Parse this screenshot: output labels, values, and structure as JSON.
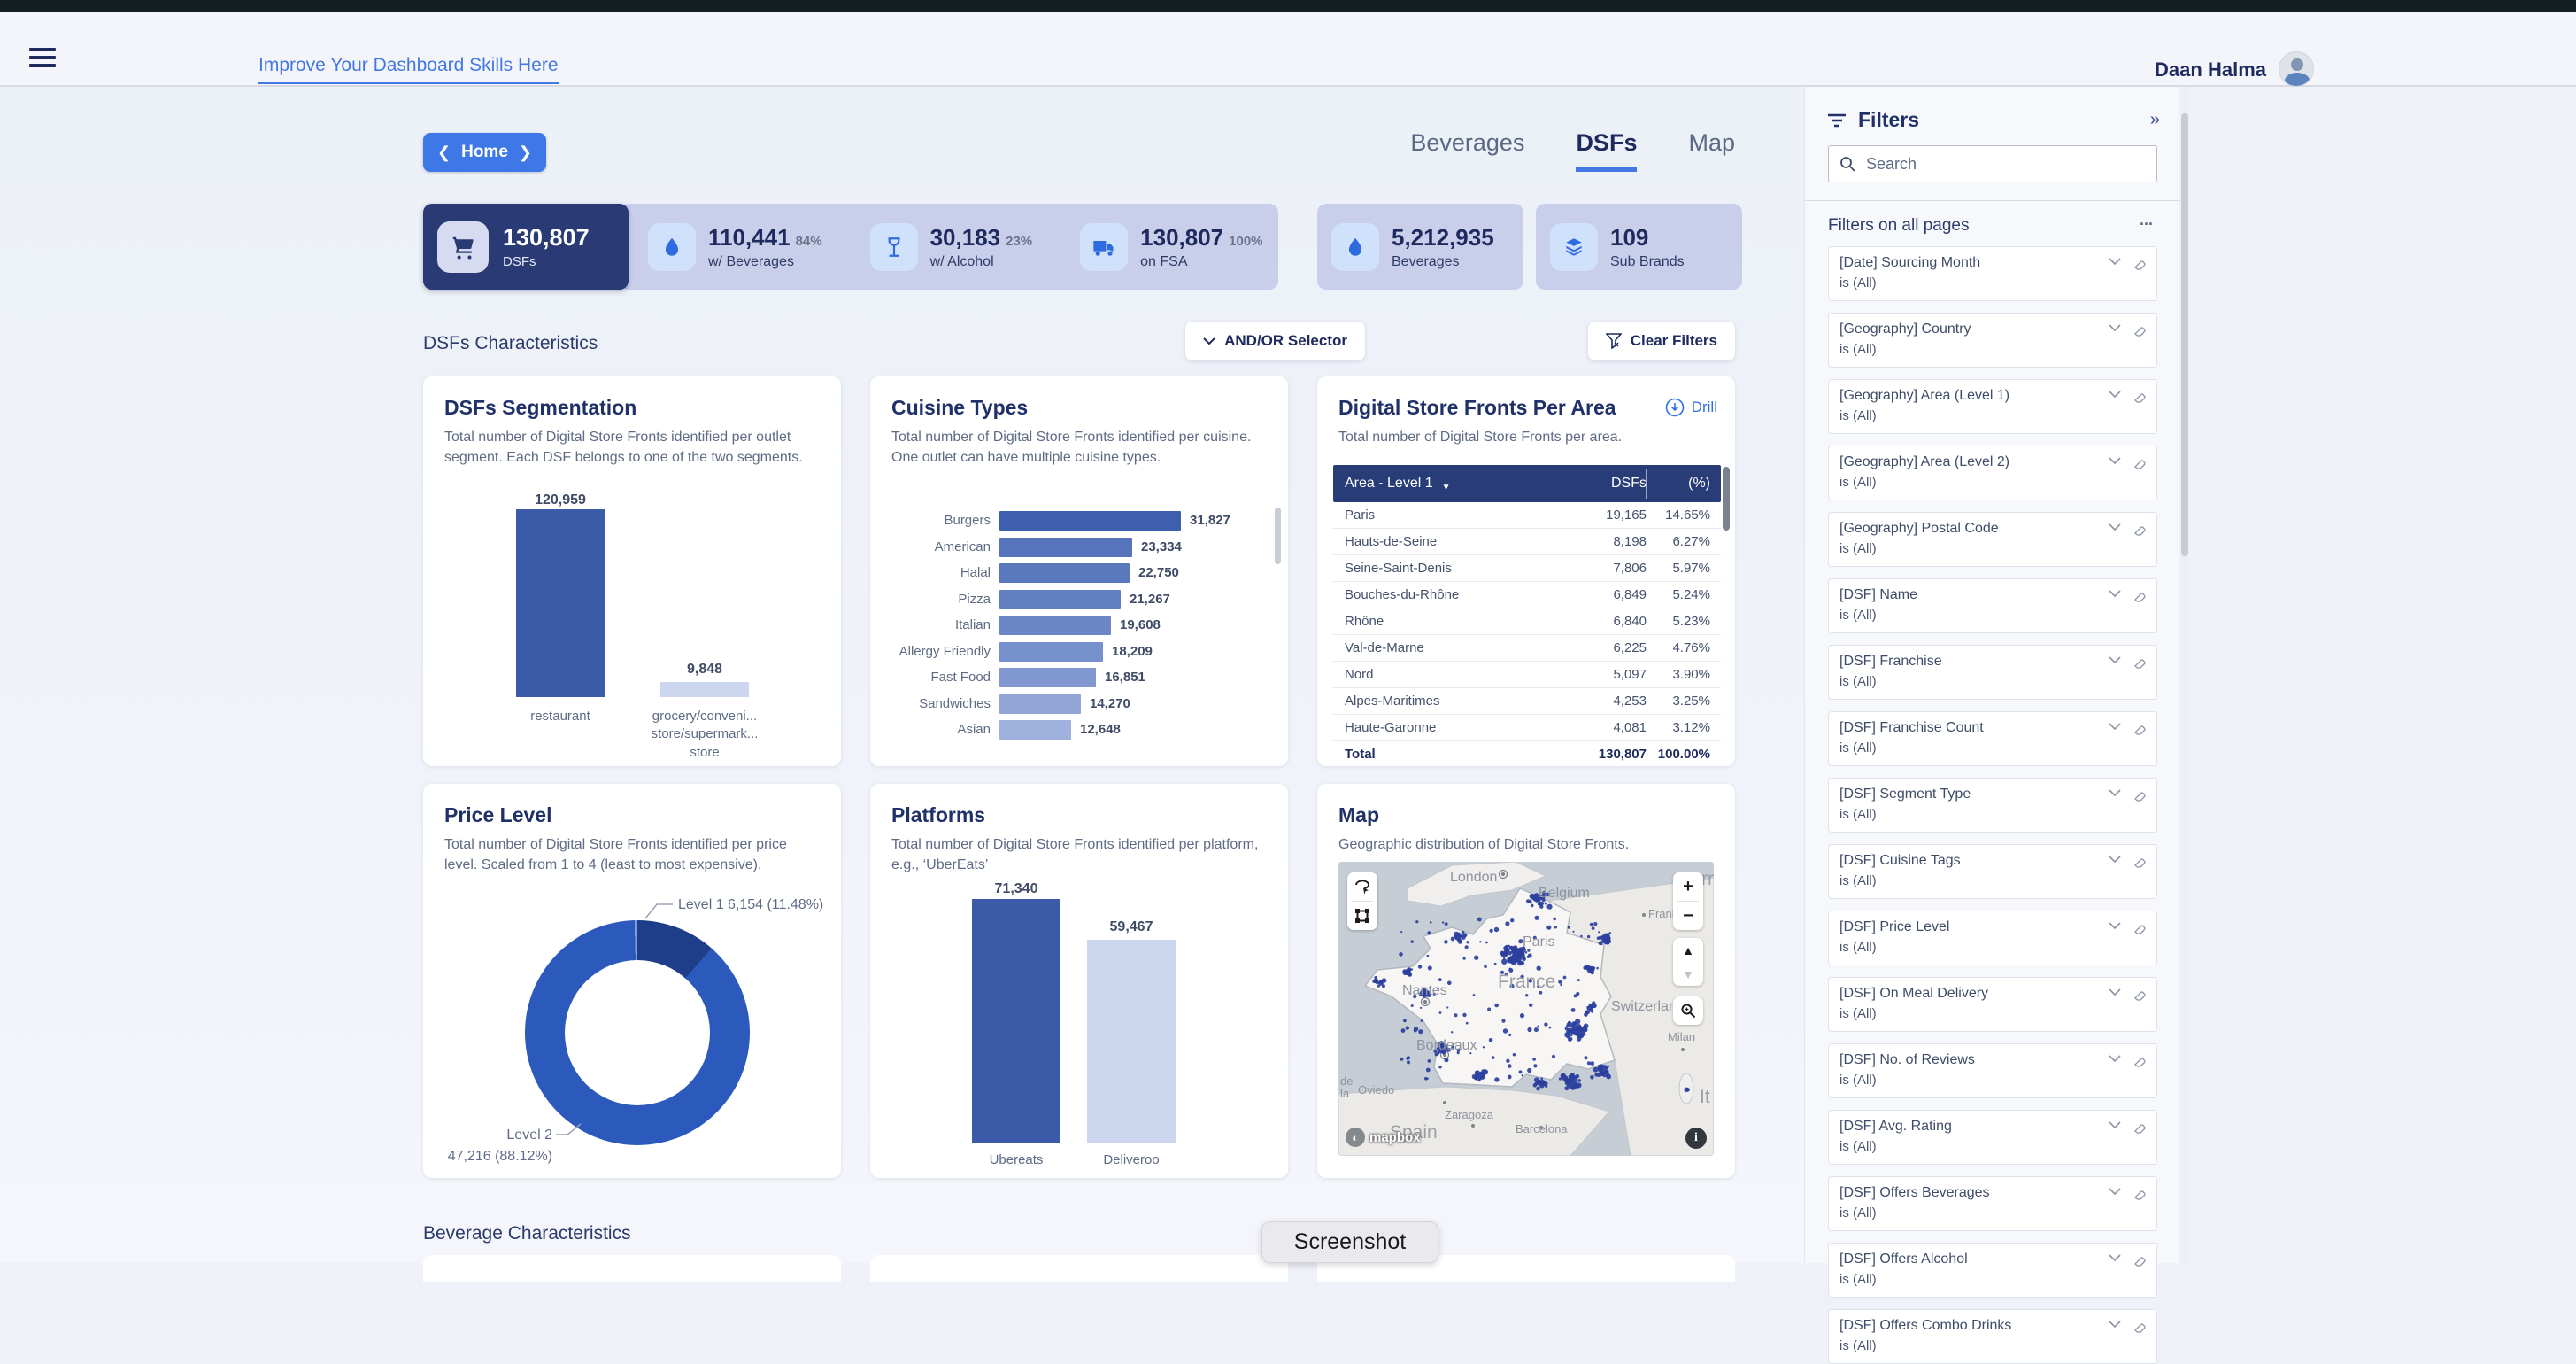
{
  "header": {
    "skills_link": "Improve Your Dashboard Skills Here",
    "user_name": "Daan Halma"
  },
  "nav": {
    "home_label": "Home",
    "tabs": [
      {
        "label": "Beverages",
        "active": false
      },
      {
        "label": "DSFs",
        "active": true
      },
      {
        "label": "Map",
        "active": false
      }
    ]
  },
  "kpis": {
    "dark": {
      "value": "130,807",
      "label": "DSFs",
      "icon": "cart-icon"
    },
    "group": [
      {
        "value": "110,441",
        "pct": "84%",
        "label": "w/ Beverages",
        "icon": "droplet-icon"
      },
      {
        "value": "30,183",
        "pct": "23%",
        "label": "w/ Alcohol",
        "icon": "wine-glass-icon"
      },
      {
        "value": "130,807",
        "pct": "100%",
        "label": "on FSA",
        "icon": "truck-icon"
      }
    ],
    "single": [
      {
        "value": "5,212,935",
        "label": "Beverages",
        "icon": "droplet-icon"
      },
      {
        "value": "109",
        "label": "Sub Brands",
        "icon": "layers-icon"
      }
    ]
  },
  "sections": {
    "dsf": "DSFs Characteristics",
    "beverage": "Beverage Characteristics"
  },
  "toolbar": {
    "andor_label": "AND/OR Selector",
    "clear_label": "Clear Filters"
  },
  "cards": {
    "segmentation": {
      "title": "DSFs Segmentation",
      "desc": "Total number of Digital Store Fronts identified per outlet segment. Each DSF belongs to one of the two segments."
    },
    "cuisine": {
      "title": "Cuisine Types",
      "desc": "Total number of Digital Store Fronts identified per cuisine. One outlet can have multiple cuisine types."
    },
    "area": {
      "title": "Digital Store Fronts Per Area",
      "desc": "Total number of Digital Store Fronts per area.",
      "drill_label": "Drill"
    },
    "price": {
      "title": "Price Level",
      "desc": "Total number of Digital Store Fronts identified per price level. Scaled from 1 to 4 (least to most expensive)."
    },
    "platforms": {
      "title": "Platforms",
      "desc": "Total number of Digital Store Fronts identified per platform, e.g., ‘UberEats’"
    },
    "map": {
      "title": "Map",
      "desc": "Geographic distribution of Digital Store Fronts.",
      "attribution": "mapbox",
      "labels": [
        {
          "text": "London"
        },
        {
          "text": "Belgium"
        },
        {
          "text": "Germ"
        },
        {
          "text": "Frank"
        },
        {
          "text": "Paris"
        },
        {
          "text": "France"
        },
        {
          "text": "Nantes"
        },
        {
          "text": "Switzerland"
        },
        {
          "text": "Milan"
        },
        {
          "text": "Bordeaux"
        },
        {
          "text": "Oviedo"
        },
        {
          "text": "Zaragoza"
        },
        {
          "text": "Spain"
        },
        {
          "text": "Barcelona"
        },
        {
          "text": "It"
        },
        {
          "text": "de"
        },
        {
          "text": "la"
        }
      ]
    }
  },
  "chart_data": [
    {
      "type": "bar",
      "title": "DSFs Segmentation",
      "categories": [
        "restaurant",
        "grocery/conveni... store/supermark... store"
      ],
      "category_lines": [
        [
          "restaurant"
        ],
        [
          "grocery/conveni...",
          "store/supermark...",
          "store"
        ]
      ],
      "values": [
        120959,
        9848
      ],
      "labels": [
        "120,959",
        "9,848"
      ],
      "colors": [
        "#3b5aa8",
        "#ccd6ee"
      ],
      "ylim": [
        0,
        130000
      ]
    },
    {
      "type": "bar",
      "orientation": "horizontal",
      "title": "Cuisine Types",
      "bars": [
        {
          "label": "Burgers",
          "value": 31827,
          "display": "31,827",
          "color": "#3d5fae"
        },
        {
          "label": "American",
          "value": 23334,
          "display": "23,334",
          "color": "#5674bb"
        },
        {
          "label": "Halal",
          "value": 22750,
          "display": "22,750",
          "color": "#5a78bd"
        },
        {
          "label": "Pizza",
          "value": 21267,
          "display": "21,267",
          "color": "#6280c2"
        },
        {
          "label": "Italian",
          "value": 19608,
          "display": "19,608",
          "color": "#6b87c6"
        },
        {
          "label": "Allergy Friendly",
          "value": 18209,
          "display": "18,209",
          "color": "#7690cb"
        },
        {
          "label": "Fast Food",
          "value": 16851,
          "display": "16,851",
          "color": "#8097cf"
        },
        {
          "label": "Sandwiches",
          "value": 14270,
          "display": "14,270",
          "color": "#91a5d6"
        },
        {
          "label": "Asian",
          "value": 12648,
          "display": "12,648",
          "color": "#9fb1dd"
        }
      ]
    },
    {
      "type": "table",
      "title": "Digital Store Fronts Per Area",
      "columns": [
        "Area - Level 1",
        "DSFs",
        "(%)"
      ],
      "rows": [
        [
          "Paris",
          "19,165",
          "14.65%"
        ],
        [
          "Hauts-de-Seine",
          "8,198",
          "6.27%"
        ],
        [
          "Seine-Saint-Denis",
          "7,806",
          "5.97%"
        ],
        [
          "Bouches-du-Rhône",
          "6,849",
          "5.24%"
        ],
        [
          "Rhône",
          "6,840",
          "5.23%"
        ],
        [
          "Val-de-Marne",
          "6,225",
          "4.76%"
        ],
        [
          "Nord",
          "5,097",
          "3.90%"
        ],
        [
          "Alpes-Maritimes",
          "4,253",
          "3.25%"
        ],
        [
          "Haute-Garonne",
          "4,081",
          "3.12%"
        ]
      ],
      "total": [
        "Total",
        "130,807",
        "100.00%"
      ]
    },
    {
      "type": "pie",
      "title": "Price Level",
      "slices": [
        {
          "label": "Level 1",
          "value": 6154,
          "pct": 11.48,
          "color": "#1e3e8a"
        },
        {
          "label": "Level 2",
          "value": 47216,
          "pct": 88.12,
          "color": "#2b5abc"
        },
        {
          "label": "",
          "value": null,
          "pct": 0.4,
          "color": "#7e9ee0"
        }
      ],
      "callouts": {
        "level1": "Level 1 6,154 (11.48%)",
        "level2_name": "Level 2",
        "level2_value": "47,216 (88.12%)"
      }
    },
    {
      "type": "bar",
      "title": "Platforms",
      "categories": [
        "Ubereats",
        "Deliveroo"
      ],
      "values": [
        71340,
        59467
      ],
      "labels": [
        "71,340",
        "59,467"
      ],
      "colors": [
        "#3b5aa8",
        "#ccd6ee"
      ]
    },
    {
      "type": "scatter-map",
      "title": "Map",
      "dot_color": "#2b3f9e",
      "clusters": [
        {
          "x": 200,
          "y": 105,
          "n": 80,
          "s": 17
        },
        {
          "x": 225,
          "y": 42,
          "n": 32,
          "s": 14
        },
        {
          "x": 300,
          "y": 88,
          "n": 22,
          "s": 10
        },
        {
          "x": 285,
          "y": 120,
          "n": 12,
          "s": 8
        },
        {
          "x": 268,
          "y": 190,
          "n": 48,
          "s": 14
        },
        {
          "x": 286,
          "y": 164,
          "n": 15,
          "s": 8
        },
        {
          "x": 262,
          "y": 248,
          "n": 30,
          "s": 12
        },
        {
          "x": 299,
          "y": 237,
          "n": 26,
          "s": 10
        },
        {
          "x": 228,
          "y": 250,
          "n": 18,
          "s": 8
        },
        {
          "x": 160,
          "y": 242,
          "n": 18,
          "s": 8
        },
        {
          "x": 118,
          "y": 210,
          "n": 18,
          "s": 7
        },
        {
          "x": 98,
          "y": 148,
          "n": 15,
          "s": 7
        },
        {
          "x": 78,
          "y": 125,
          "n": 10,
          "s": 6
        },
        {
          "x": 45,
          "y": 135,
          "n": 10,
          "s": 8
        },
        {
          "x": 140,
          "y": 85,
          "n": 12,
          "s": 9
        },
        {
          "x": 393,
          "y": 258,
          "n": 3,
          "s": 4
        }
      ],
      "scatter": {
        "n": 140,
        "x0": 70,
        "x1": 295,
        "y0": 62,
        "y1": 248
      }
    }
  ],
  "filters": {
    "title": "Filters",
    "search_placeholder": "Search",
    "section_label": "Filters on all pages",
    "more_label": "...",
    "items": [
      {
        "name": "[Date] Sourcing Month",
        "value": "is (All)"
      },
      {
        "name": "[Geography] Country",
        "value": "is (All)"
      },
      {
        "name": "[Geography] Area (Level 1)",
        "value": "is (All)"
      },
      {
        "name": "[Geography] Area (Level 2)",
        "value": "is (All)"
      },
      {
        "name": "[Geography] Postal Code",
        "value": "is (All)"
      },
      {
        "name": "[DSF] Name",
        "value": "is (All)"
      },
      {
        "name": "[DSF] Franchise",
        "value": "is (All)"
      },
      {
        "name": "[DSF] Franchise Count",
        "value": "is (All)"
      },
      {
        "name": "[DSF] Segment Type",
        "value": "is (All)"
      },
      {
        "name": "[DSF] Cuisine Tags",
        "value": "is (All)"
      },
      {
        "name": "[DSF] Price Level",
        "value": "is (All)"
      },
      {
        "name": "[DSF] On Meal Delivery",
        "value": "is (All)"
      },
      {
        "name": "[DSF] No. of Reviews",
        "value": "is (All)"
      },
      {
        "name": "[DSF] Avg. Rating",
        "value": "is (All)"
      },
      {
        "name": "[DSF] Offers Beverages",
        "value": "is (All)"
      },
      {
        "name": "[DSF] Offers Alcohol",
        "value": "is (All)"
      },
      {
        "name": "[DSF] Offers Combo Drinks",
        "value": "is (All)"
      }
    ]
  },
  "screenshot_label": "Screenshot",
  "colors": {
    "accent_blue": "#4479e4",
    "navy": "#1e2a5e",
    "bar_dark": "#3b5aa8",
    "bar_light": "#ccd6ee",
    "kpi_dark_bg": "#2a3a74",
    "kpi_group_bg": "#c9cfeb",
    "table_header_bg": "#283c78",
    "map_dot": "#2b3f9e"
  }
}
